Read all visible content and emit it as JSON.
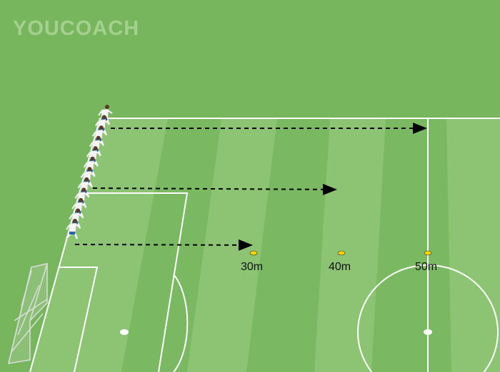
{
  "logo": {
    "text": "YOUCOACH"
  },
  "colors": {
    "grass": "#78b65e",
    "stripe_light": "#8cc474",
    "stripe_dark": "#7ab862",
    "lines": "#ffffff",
    "cone": "#f5d300"
  },
  "drill": {
    "player_count": 12,
    "arrows": [
      {
        "target": "50m"
      },
      {
        "target": "40m"
      },
      {
        "target": "30m"
      }
    ],
    "markers": [
      {
        "label": "30m",
        "icon": "cone-icon"
      },
      {
        "label": "40m",
        "icon": "cone-icon"
      },
      {
        "label": "50m",
        "icon": "cone-icon"
      }
    ]
  }
}
